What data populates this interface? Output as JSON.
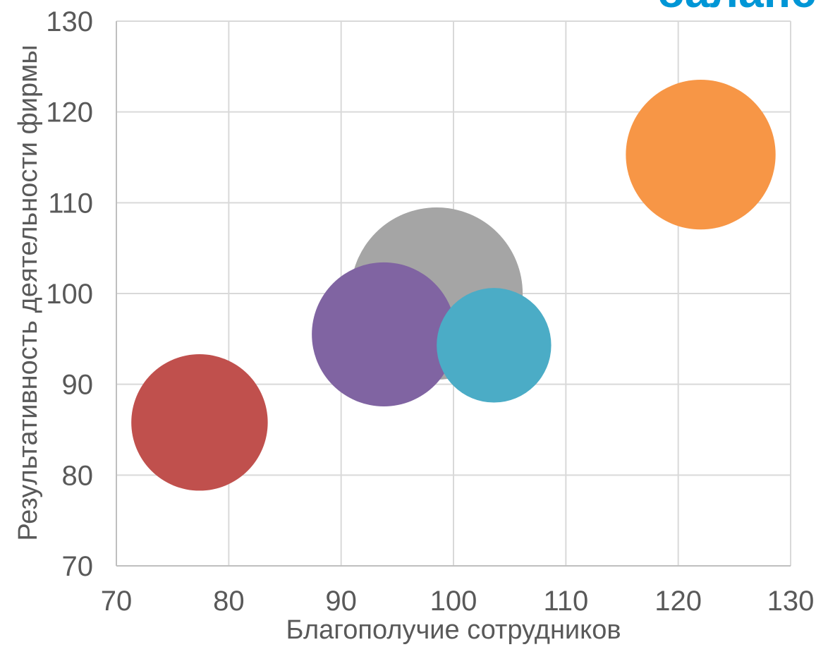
{
  "corner_title": {
    "text": "баланс",
    "color": "#0096d6"
  },
  "chart_data": {
    "type": "bubble",
    "xlabel": "Благополучие сотрудников",
    "ylabel": "Результативность деятельности фирмы",
    "xlim": [
      70,
      130
    ],
    "ylim": [
      70,
      130
    ],
    "x_ticks": [
      "70",
      "80",
      "90",
      "100",
      "110",
      "120",
      "130"
    ],
    "y_ticks": [
      "70",
      "80",
      "90",
      "100",
      "110",
      "120",
      "130"
    ],
    "grid": true,
    "legend": "none",
    "points": [
      {
        "x": 98.5,
        "y": 100.0,
        "size": 7.0,
        "color": "#a5a5a5"
      },
      {
        "x": 122.0,
        "y": 115.3,
        "size": 5.3,
        "color": "#f79646"
      },
      {
        "x": 77.4,
        "y": 85.8,
        "size": 4.4,
        "color": "#c0504d"
      },
      {
        "x": 93.8,
        "y": 95.5,
        "size": 4.9,
        "color": "#8064a2"
      },
      {
        "x": 103.6,
        "y": 94.3,
        "size": 3.1,
        "color": "#4bacc6"
      }
    ]
  }
}
